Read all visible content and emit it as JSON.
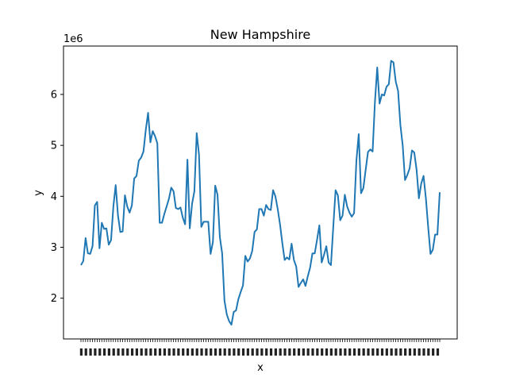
{
  "chart_data": {
    "type": "line",
    "title": "New Hampshire",
    "xlabel": "x",
    "ylabel": "y",
    "y_scale_label": "1e6",
    "ylim": [
      1.2,
      6.95
    ],
    "yticks": [
      2,
      3,
      4,
      5,
      6
    ],
    "grid": false,
    "line_color": "#1f77b4",
    "x_tick_labels_note": "dense overlapping unreadable labels, last ends in '25'",
    "series": [
      {
        "values": [
          2.65,
          2.73,
          3.18,
          2.88,
          2.87,
          3.02,
          3.82,
          3.89,
          2.98,
          3.48,
          3.36,
          3.37,
          3.05,
          3.14,
          3.8,
          4.22,
          3.62,
          3.3,
          3.31,
          4.02,
          3.8,
          3.68,
          3.82,
          4.35,
          4.4,
          4.7,
          4.76,
          4.88,
          5.3,
          5.64,
          5.06,
          5.28,
          5.18,
          5.04,
          3.48,
          3.48,
          3.65,
          3.8,
          3.95,
          4.17,
          4.1,
          3.77,
          3.75,
          3.78,
          3.58,
          3.45,
          4.72,
          3.37,
          3.85,
          4.1,
          5.24,
          4.82,
          3.4,
          3.5,
          3.5,
          3.5,
          2.87,
          3.1,
          4.21,
          4.03,
          3.2,
          2.88,
          1.95,
          1.68,
          1.55,
          1.48,
          1.73,
          1.76,
          1.98,
          2.12,
          2.25,
          2.83,
          2.72,
          2.78,
          2.93,
          3.3,
          3.35,
          3.75,
          3.75,
          3.62,
          3.83,
          3.75,
          3.73,
          4.12,
          4.0,
          3.75,
          3.45,
          3.08,
          2.75,
          2.8,
          2.76,
          3.07,
          2.75,
          2.62,
          2.22,
          2.3,
          2.37,
          2.24,
          2.43,
          2.6,
          2.88,
          2.88,
          3.15,
          3.43,
          2.7,
          2.85,
          3.02,
          2.7,
          2.65,
          3.4,
          4.12,
          4.02,
          3.53,
          3.62,
          4.03,
          3.8,
          3.68,
          3.6,
          3.67,
          4.7,
          5.22,
          4.06,
          4.16,
          4.52,
          4.87,
          4.92,
          4.88,
          5.85,
          6.53,
          5.82,
          6.0,
          5.98,
          6.15,
          6.2,
          6.66,
          6.63,
          6.25,
          6.07,
          5.4,
          5.0,
          4.32,
          4.42,
          4.55,
          4.9,
          4.86,
          4.52,
          3.96,
          4.25,
          4.4,
          3.97,
          3.4,
          2.87,
          2.95,
          3.25,
          3.25,
          4.08
        ]
      }
    ]
  }
}
